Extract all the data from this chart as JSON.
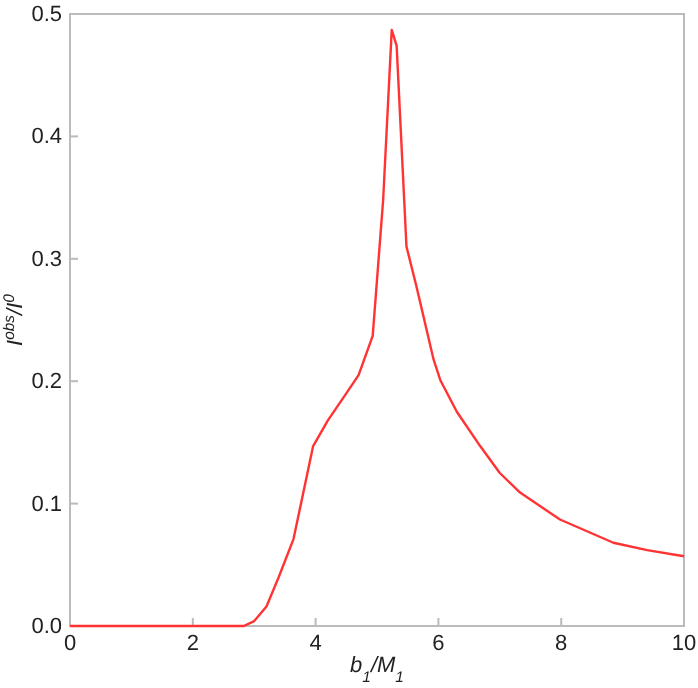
{
  "chart_data": {
    "type": "line",
    "xlabel": "b$_{1}$/M$_{1}$",
    "ylabel": "I$^{obs}$/I$^{0}$",
    "x": [
      0,
      1,
      2,
      2.83,
      3,
      3.2,
      3.4,
      3.64,
      3.96,
      4.2,
      4.5,
      4.7,
      4.93,
      5.1,
      5.24,
      5.32,
      5.48,
      5.64,
      5.92,
      6.03,
      6.3,
      6.68,
      7,
      7.33,
      7.98,
      8.85,
      9.4,
      10
    ],
    "series": [
      {
        "color": "#ff3333",
        "values": [
          0,
          0,
          0,
          0,
          0.004,
          0.016,
          0.04,
          0.071,
          0.147,
          0.168,
          0.19,
          0.205,
          0.237,
          0.348,
          0.487,
          0.474,
          0.31,
          0.278,
          0.218,
          0.201,
          0.175,
          0.147,
          0.125,
          0.109,
          0.087,
          0.068,
          0.062,
          0.057
        ]
      }
    ],
    "xlim": [
      0,
      10
    ],
    "ylim": [
      0,
      0.5
    ],
    "xticks": [
      0,
      2,
      4,
      6,
      8,
      10
    ],
    "yticks": [
      {
        "value": 0,
        "label": "0.0"
      },
      0.1,
      0.2,
      0.3,
      0.4,
      0.5
    ],
    "grid": false,
    "marker": "none",
    "line_style": "solid"
  }
}
